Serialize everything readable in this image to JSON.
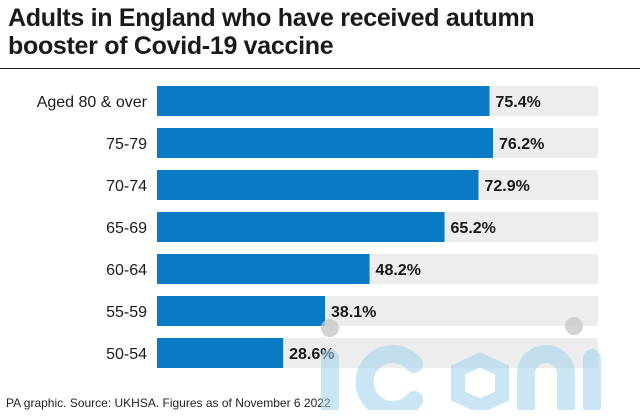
{
  "chart_data": {
    "type": "bar",
    "orientation": "horizontal",
    "title": "Adults in England who have received autumn booster of Covid-19 vaccine",
    "categories": [
      "Aged 80 & over",
      "75-79",
      "70-74",
      "65-69",
      "60-64",
      "55-59",
      "50-54"
    ],
    "values": [
      75.4,
      76.2,
      72.9,
      65.2,
      48.2,
      38.1,
      28.6
    ],
    "value_labels": [
      "75.4%",
      "76.2%",
      "72.9%",
      "65.2%",
      "48.2%",
      "38.1%",
      "28.6%"
    ],
    "xlim": [
      0,
      100
    ],
    "grid": false,
    "legend": "none",
    "colors": {
      "bar": "#0a7ac4",
      "track": "#ededed"
    }
  },
  "footer": {
    "source": "PA graphic. Source: UKHSA. Figures as of November 6 2022"
  },
  "watermark": {
    "text": "iconic"
  }
}
